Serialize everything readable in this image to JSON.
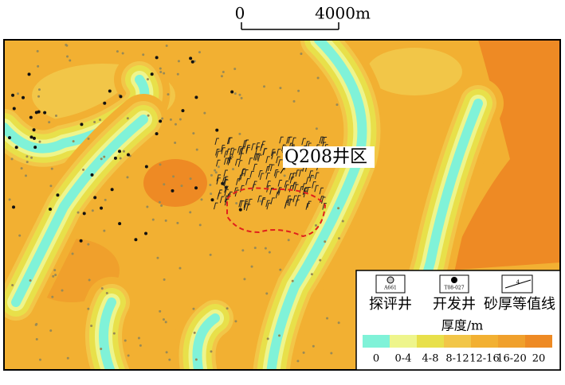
{
  "scale_bar": {
    "start": "0",
    "end": "4000m"
  },
  "area_label": "Q208井区",
  "legend": {
    "symbols": [
      {
        "label": "探评井",
        "icon_text": "A661"
      },
      {
        "label": "开发井",
        "icon_text": "T08-027"
      },
      {
        "label": "砂厚等值线",
        "icon_text": "4"
      }
    ],
    "title": "厚度/m",
    "bins": [
      {
        "label": "0",
        "color": "#80f2d8"
      },
      {
        "label": "0-4",
        "color": "#eef58c"
      },
      {
        "label": "4-8",
        "color": "#e8e04a"
      },
      {
        "label": "8-12",
        "color": "#f2c648"
      },
      {
        "label": "12-16",
        "color": "#f2b032"
      },
      {
        "label": "16-20",
        "color": "#f0a02c"
      },
      {
        "label": "20",
        "color": "#ee8a24"
      }
    ]
  }
}
